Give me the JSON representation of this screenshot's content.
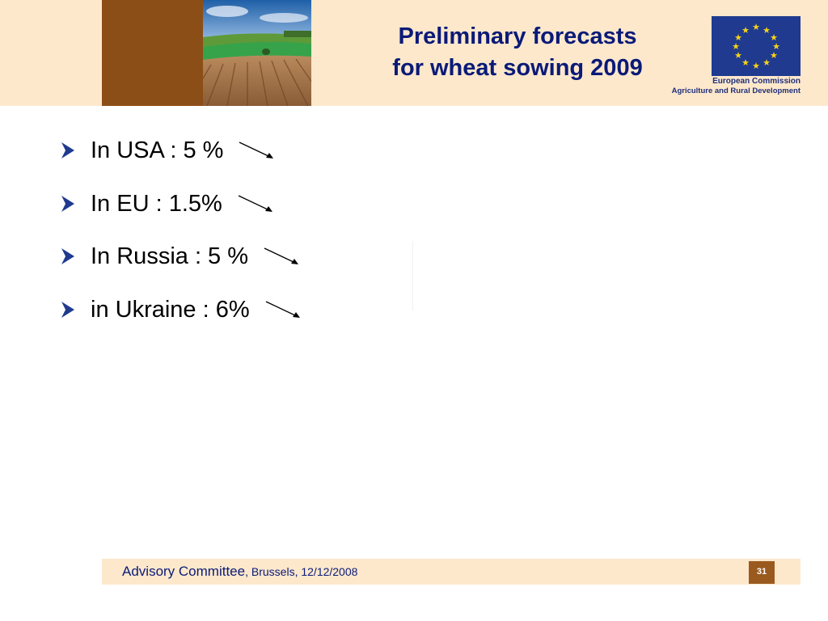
{
  "header": {
    "title_line1": "Preliminary forecasts",
    "title_line2": "for wheat sowing 2009",
    "org_line1": "European Commission",
    "org_line2": "Agriculture and Rural Development",
    "flag_icon": "eu-flag-icon",
    "colors": {
      "band": "#fde8cc",
      "brown": "#8c4e17",
      "title": "#0a1a78"
    }
  },
  "bullets": [
    {
      "text": "In USA : 5 %",
      "trend": "down-arrow-icon"
    },
    {
      "text": "In EU : 1.5%",
      "trend": "down-arrow-icon"
    },
    {
      "text": "In Russia : 5 %",
      "trend": "down-arrow-icon"
    },
    {
      "text": "in Ukraine : 6%",
      "trend": "down-arrow-icon"
    }
  ],
  "footer": {
    "committee": "Advisory Committee",
    "location_date": ", Brussels, 12/12/2008",
    "page_number": "31"
  }
}
